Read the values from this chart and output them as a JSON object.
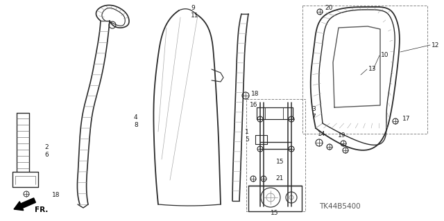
{
  "bg_color": "#ffffff",
  "line_color": "#2a2a2a",
  "label_color": "#1a1a1a",
  "watermark": "TK44B5400",
  "fig_w": 6.4,
  "fig_h": 3.19,
  "dpi": 100
}
